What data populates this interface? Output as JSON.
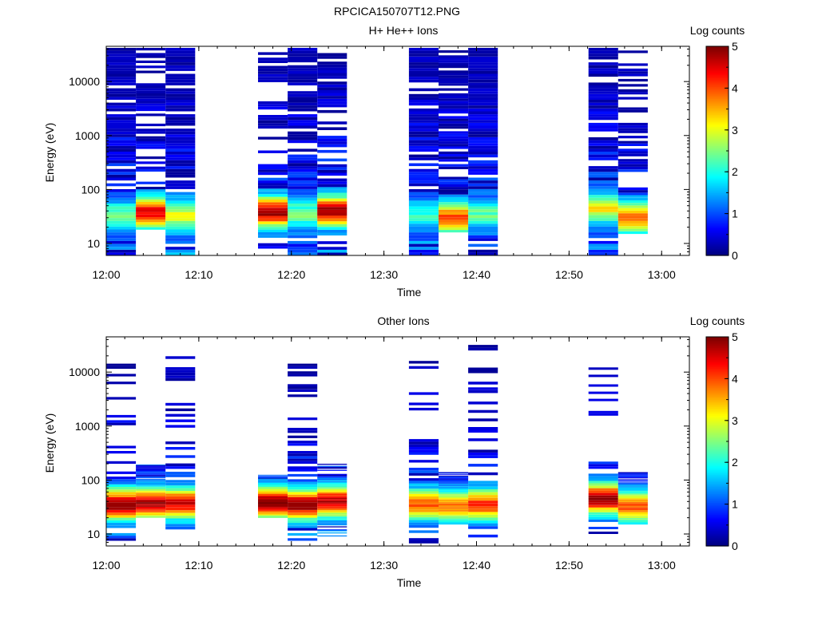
{
  "page_title": "RPCICA150707T12.PNG",
  "chart_data": [
    {
      "type": "heatmap",
      "title": "H+ He++ Ions",
      "xlabel": "Time",
      "ylabel": "Energy (eV)",
      "yscale": "log",
      "ylim": [
        6,
        45000
      ],
      "xlim": [
        "12:00",
        "13:03"
      ],
      "xticks": [
        "12:00",
        "12:10",
        "12:20",
        "12:30",
        "12:40",
        "12:50",
        "13:00"
      ],
      "yticks": [
        "10",
        "100",
        "1000",
        "10000"
      ],
      "colorbar": {
        "label": "Log counts",
        "min": 0,
        "max": 5,
        "ticks": [
          "0",
          "1",
          "2",
          "3",
          "4",
          "5"
        ]
      },
      "columns": [
        {
          "start": "12:00",
          "end": "12:03.2",
          "top": 42000,
          "bottom": 6,
          "peak_energy": 33,
          "peak_value": 1.6,
          "fill": 0.86
        },
        {
          "start": "12:03.2",
          "end": "12:06.4",
          "top": 42000,
          "bottom": 18,
          "peak_energy": 37,
          "peak_value": 3.7,
          "fill": 0.55
        },
        {
          "start": "12:06.4",
          "end": "12:09.6",
          "top": 42000,
          "bottom": 6,
          "peak_energy": 33,
          "peak_value": 2.2,
          "fill": 0.9
        },
        {
          "start": "12:16.4",
          "end": "12:19.6",
          "top": 35000,
          "bottom": 8,
          "peak_energy": 38,
          "peak_value": 4.0,
          "fill": 0.6
        },
        {
          "start": "12:19.6",
          "end": "12:22.8",
          "top": 42000,
          "bottom": 6,
          "peak_energy": 35,
          "peak_value": 1.6,
          "fill": 0.88
        },
        {
          "start": "12:22.8",
          "end": "12:26",
          "top": 38000,
          "bottom": 6,
          "peak_energy": 40,
          "peak_value": 3.9,
          "fill": 0.7
        },
        {
          "start": "12:32.7",
          "end": "12:35.9",
          "top": 42000,
          "bottom": 6,
          "peak_energy": 33,
          "peak_value": 1.2,
          "fill": 0.9
        },
        {
          "start": "12:35.9",
          "end": "12:39.1",
          "top": 38000,
          "bottom": 16,
          "peak_energy": 30,
          "peak_value": 3.2,
          "fill": 0.75
        },
        {
          "start": "12:39.1",
          "end": "12:42.3",
          "top": 42000,
          "bottom": 6,
          "peak_energy": 35,
          "peak_value": 1.5,
          "fill": 0.88
        },
        {
          "start": "12:52.1",
          "end": "12:55.3",
          "top": 42000,
          "bottom": 6,
          "peak_energy": 45,
          "peak_value": 2.3,
          "fill": 0.82
        },
        {
          "start": "12:55.3",
          "end": "12:58.5",
          "top": 42000,
          "bottom": 15,
          "peak_energy": 30,
          "peak_value": 3.0,
          "fill": 0.5
        }
      ]
    },
    {
      "type": "heatmap",
      "title": "Other Ions",
      "xlabel": "Time",
      "ylabel": "Energy (eV)",
      "yscale": "log",
      "ylim": [
        6,
        45000
      ],
      "xlim": [
        "12:00",
        "13:03"
      ],
      "xticks": [
        "12:00",
        "12:10",
        "12:20",
        "12:30",
        "12:40",
        "12:50",
        "13:00"
      ],
      "yticks": [
        "10",
        "100",
        "1000",
        "10000"
      ],
      "colorbar": {
        "label": "Log counts",
        "min": 0,
        "max": 5,
        "ticks": [
          "0",
          "1",
          "2",
          "3",
          "4",
          "5"
        ]
      },
      "columns": [
        {
          "start": "12:00",
          "end": "12:03.2",
          "top": 16000,
          "bottom": 6,
          "peak_energy": 35,
          "peak_value": 4.2,
          "fill": 0.35
        },
        {
          "start": "12:03.2",
          "end": "12:06.4",
          "top": 200,
          "bottom": 20,
          "peak_energy": 37,
          "peak_value": 4.0,
          "fill": 0.7
        },
        {
          "start": "12:06.4",
          "end": "12:09.6",
          "top": 28000,
          "bottom": 6,
          "peak_energy": 37,
          "peak_value": 3.7,
          "fill": 0.35
        },
        {
          "start": "12:16.4",
          "end": "12:19.6",
          "top": 125,
          "bottom": 20,
          "peak_energy": 38,
          "peak_value": 4.2,
          "fill": 0.9
        },
        {
          "start": "12:19.6",
          "end": "12:22.8",
          "top": 16000,
          "bottom": 6,
          "peak_energy": 35,
          "peak_value": 4.1,
          "fill": 0.4
        },
        {
          "start": "12:22.8",
          "end": "12:26",
          "top": 200,
          "bottom": 9,
          "peak_energy": 40,
          "peak_value": 3.9,
          "fill": 0.7
        },
        {
          "start": "12:32.7",
          "end": "12:35.9",
          "top": 18000,
          "bottom": 6,
          "peak_energy": 35,
          "peak_value": 3.2,
          "fill": 0.4
        },
        {
          "start": "12:35.9",
          "end": "12:39.1",
          "top": 140,
          "bottom": 15,
          "peak_energy": 33,
          "peak_value": 3.0,
          "fill": 0.85
        },
        {
          "start": "12:39.1",
          "end": "12:42.3",
          "top": 36000,
          "bottom": 6,
          "peak_energy": 35,
          "peak_value": 3.3,
          "fill": 0.4
        },
        {
          "start": "12:52.1",
          "end": "12:55.3",
          "top": 15000,
          "bottom": 9,
          "peak_energy": 45,
          "peak_value": 4.0,
          "fill": 0.4
        },
        {
          "start": "12:55.3",
          "end": "12:58.5",
          "top": 140,
          "bottom": 15,
          "peak_energy": 32,
          "peak_value": 3.1,
          "fill": 0.8
        }
      ]
    }
  ]
}
